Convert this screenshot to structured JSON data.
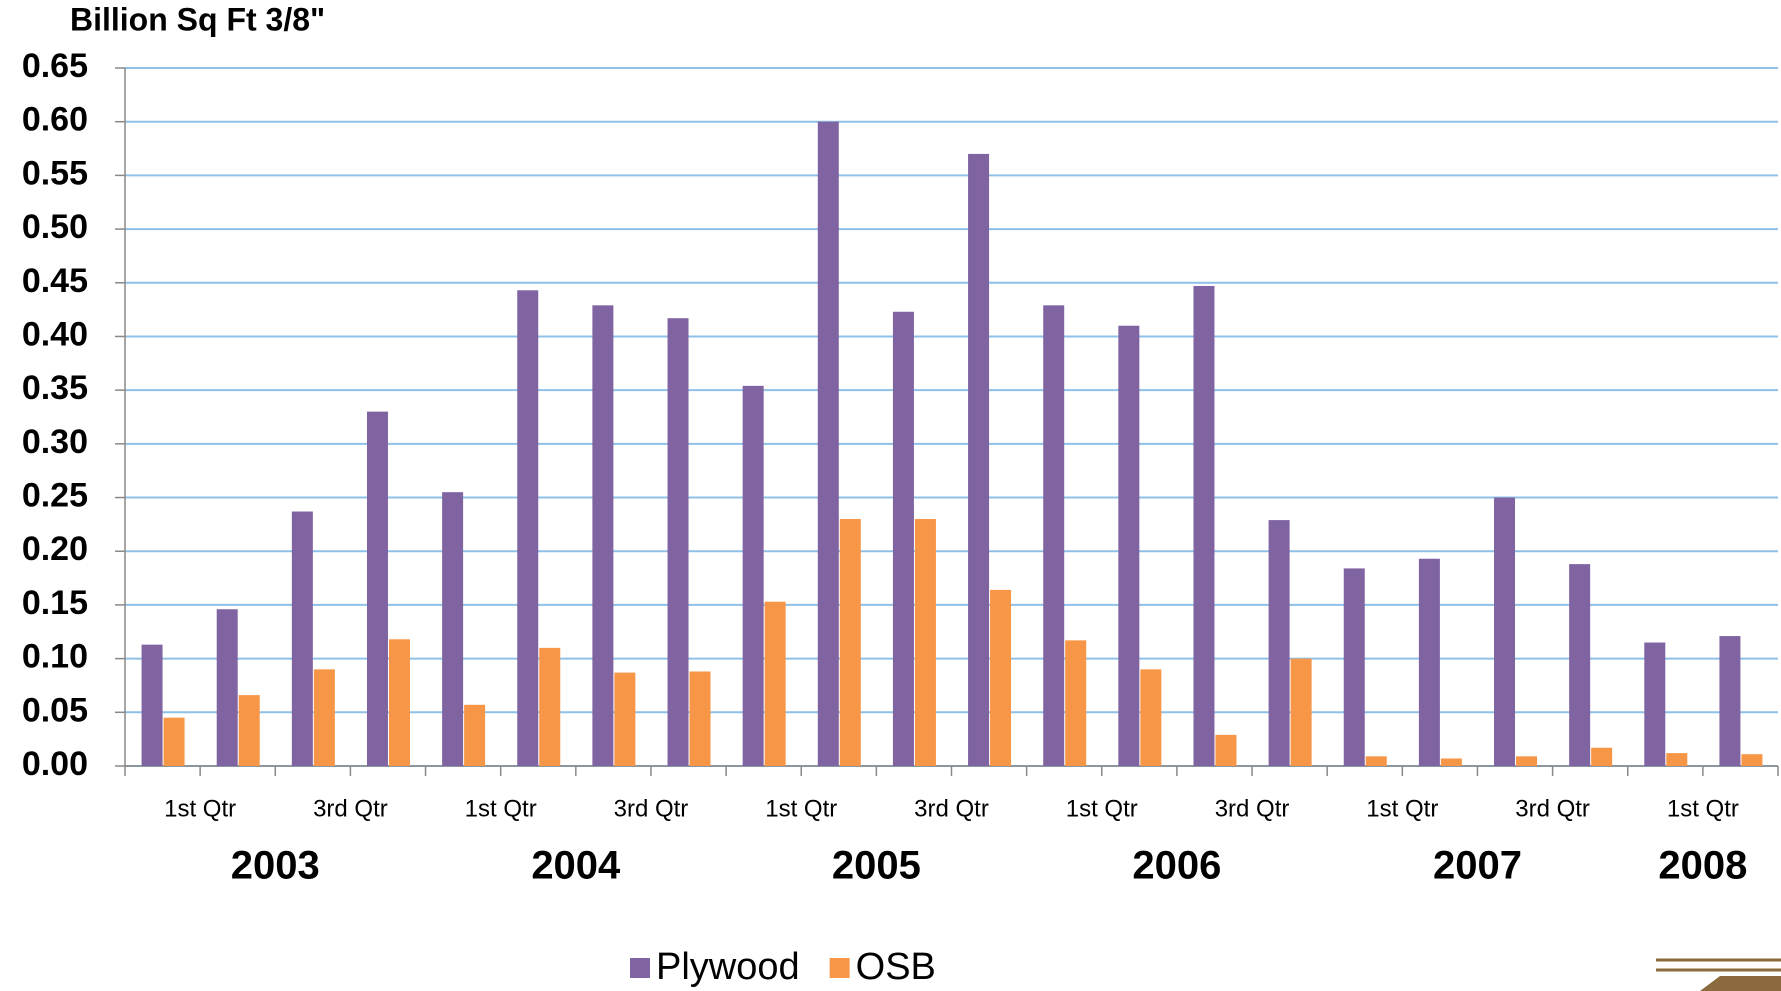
{
  "chart_data": {
    "type": "bar",
    "title": "Billion Sq Ft 3/8\"",
    "categories": [
      "1st Qtr",
      null,
      "3rd Qtr",
      null,
      "1st Qtr",
      null,
      "3rd Qtr",
      null,
      "1st Qtr",
      null,
      "3rd Qtr",
      null,
      "1st Qtr",
      null,
      "3rd Qtr",
      null,
      "1st Qtr",
      null,
      "3rd Qtr",
      null,
      "1st Qtr",
      null
    ],
    "groups": [
      "2003",
      "2004",
      "2005",
      "2006",
      "2007",
      "2008"
    ],
    "series": [
      {
        "name": "Plywood",
        "color": "#8064a2",
        "values": [
          0.113,
          0.146,
          0.237,
          0.33,
          0.255,
          0.443,
          0.429,
          0.417,
          0.354,
          0.6,
          0.423,
          0.57,
          0.429,
          0.41,
          0.447,
          0.229,
          0.184,
          0.193,
          0.25,
          0.188,
          0.115,
          0.121
        ]
      },
      {
        "name": "OSB",
        "color": "#f79646",
        "values": [
          0.045,
          0.066,
          0.09,
          0.118,
          0.057,
          0.11,
          0.087,
          0.088,
          0.153,
          0.23,
          0.23,
          0.164,
          0.117,
          0.09,
          0.029,
          0.1,
          0.009,
          0.007,
          0.009,
          0.017,
          0.012,
          0.011
        ]
      }
    ],
    "ylim": [
      0,
      0.65
    ],
    "yticks": [
      {
        "value": 0,
        "label": "0.00"
      },
      0.05,
      {
        "value": 0.1,
        "label": "0.10"
      },
      0.15,
      {
        "value": 0.2,
        "label": "0.20"
      },
      0.25,
      {
        "value": 0.3,
        "label": "0.30"
      },
      0.35,
      {
        "value": 0.4,
        "label": "0.40"
      },
      0.45,
      {
        "value": 0.5,
        "label": "0.50"
      },
      0.55,
      {
        "value": 0.6,
        "label": "0.60"
      },
      0.65
    ],
    "grid": true,
    "legend": "bottom"
  }
}
